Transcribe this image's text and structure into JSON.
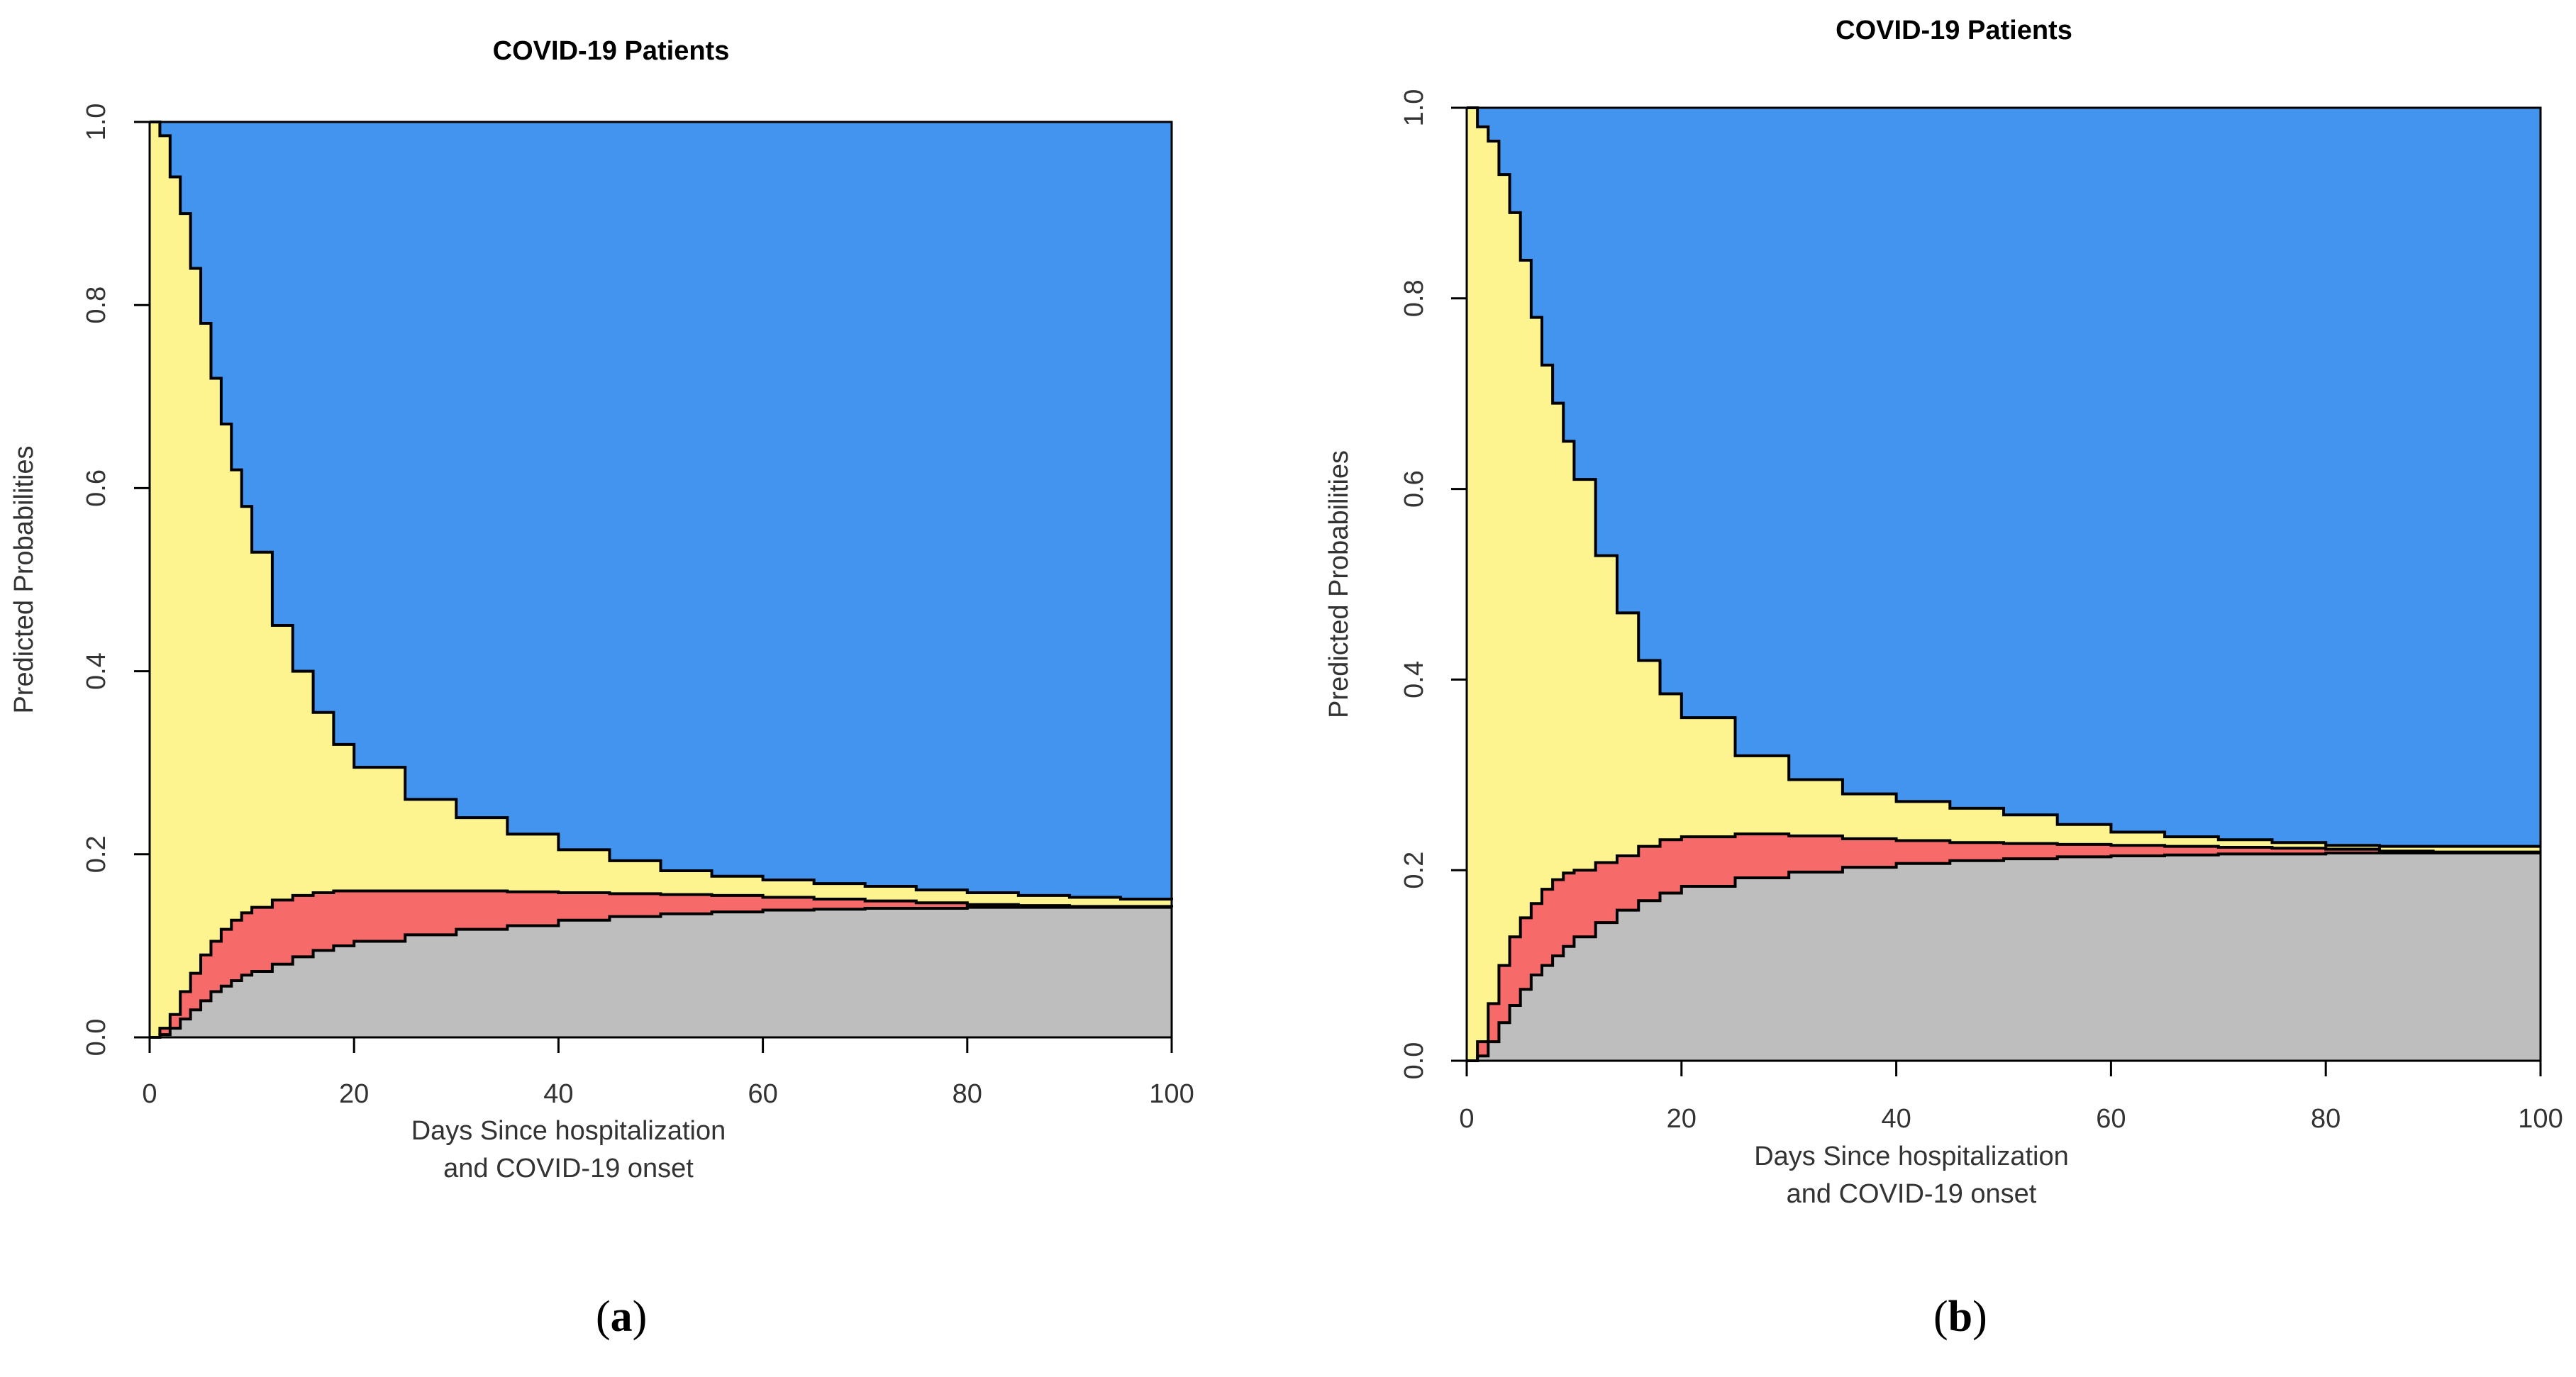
{
  "chart_data": [
    {
      "id": "a",
      "type": "area",
      "stacked": true,
      "step": true,
      "panel_label": "a",
      "title": "COVID-19 Patients",
      "xlabel_lines": [
        "Days Since hospitalization",
        "and COVID-19 onset"
      ],
      "ylabel": "Predicted Probabilities",
      "xlim": [
        0,
        100
      ],
      "ylim": [
        0,
        1
      ],
      "xticks": [
        "0",
        "20",
        "40",
        "60",
        "80",
        "100"
      ],
      "yticks": [
        "0.0",
        "0.2",
        "0.4",
        "0.6",
        "0.8",
        "1.0"
      ],
      "x": [
        0,
        1,
        2,
        3,
        4,
        5,
        6,
        7,
        8,
        9,
        10,
        12,
        14,
        16,
        18,
        20,
        25,
        30,
        35,
        40,
        45,
        50,
        55,
        60,
        65,
        70,
        75,
        80,
        85,
        90,
        95,
        100
      ],
      "series": [
        {
          "name": "gray",
          "color": "#bebebe",
          "boundary": [
            0,
            0.003,
            0.01,
            0.02,
            0.03,
            0.04,
            0.05,
            0.056,
            0.062,
            0.068,
            0.072,
            0.08,
            0.088,
            0.095,
            0.1,
            0.105,
            0.112,
            0.118,
            0.122,
            0.128,
            0.132,
            0.135,
            0.137,
            0.139,
            0.14,
            0.141,
            0.141,
            0.142,
            0.142,
            0.142,
            0.142,
            0.142
          ]
        },
        {
          "name": "red",
          "color": "#f66a6a",
          "boundary": [
            0,
            0.01,
            0.025,
            0.05,
            0.07,
            0.09,
            0.105,
            0.118,
            0.128,
            0.136,
            0.142,
            0.15,
            0.155,
            0.158,
            0.16,
            0.16,
            0.16,
            0.16,
            0.159,
            0.158,
            0.157,
            0.156,
            0.155,
            0.153,
            0.151,
            0.149,
            0.147,
            0.145,
            0.144,
            0.143,
            0.143,
            0.142
          ]
        },
        {
          "name": "yellow",
          "color": "#fdf48f",
          "boundary": [
            1.0,
            0.985,
            0.94,
            0.9,
            0.84,
            0.78,
            0.72,
            0.67,
            0.62,
            0.58,
            0.53,
            0.45,
            0.4,
            0.355,
            0.32,
            0.295,
            0.26,
            0.24,
            0.222,
            0.205,
            0.193,
            0.182,
            0.176,
            0.172,
            0.168,
            0.165,
            0.161,
            0.158,
            0.155,
            0.153,
            0.151,
            0.15
          ]
        },
        {
          "name": "blue",
          "color": "#4294ee",
          "boundary": [
            1,
            1,
            1,
            1,
            1,
            1,
            1,
            1,
            1,
            1,
            1,
            1,
            1,
            1,
            1,
            1,
            1,
            1,
            1,
            1,
            1,
            1,
            1,
            1,
            1,
            1,
            1,
            1,
            1,
            1,
            1,
            1
          ]
        }
      ]
    },
    {
      "id": "b",
      "type": "area",
      "stacked": true,
      "step": true,
      "panel_label": "b",
      "title": "COVID-19 Patients",
      "xlabel_lines": [
        "Days Since hospitalization",
        "and COVID-19 onset"
      ],
      "ylabel": "Predicted Probabilities",
      "xlim": [
        0,
        100
      ],
      "ylim": [
        0,
        1
      ],
      "xticks": [
        "0",
        "20",
        "40",
        "60",
        "80",
        "100"
      ],
      "yticks": [
        "0.0",
        "0.2",
        "0.4",
        "0.6",
        "0.8",
        "1.0"
      ],
      "x": [
        0,
        1,
        2,
        3,
        4,
        5,
        6,
        7,
        8,
        9,
        10,
        12,
        14,
        16,
        18,
        20,
        25,
        30,
        35,
        40,
        45,
        50,
        55,
        60,
        65,
        70,
        75,
        80,
        85,
        90,
        95,
        100
      ],
      "series": [
        {
          "name": "gray",
          "color": "#bebebe",
          "boundary": [
            0,
            0.005,
            0.02,
            0.04,
            0.058,
            0.075,
            0.09,
            0.1,
            0.11,
            0.12,
            0.13,
            0.145,
            0.158,
            0.168,
            0.176,
            0.183,
            0.192,
            0.198,
            0.203,
            0.207,
            0.21,
            0.212,
            0.214,
            0.215,
            0.216,
            0.217,
            0.217,
            0.218,
            0.218,
            0.218,
            0.218,
            0.218
          ]
        },
        {
          "name": "red",
          "color": "#f66a6a",
          "boundary": [
            0,
            0.02,
            0.06,
            0.1,
            0.13,
            0.15,
            0.165,
            0.18,
            0.19,
            0.197,
            0.2,
            0.208,
            0.215,
            0.225,
            0.232,
            0.235,
            0.238,
            0.236,
            0.233,
            0.231,
            0.229,
            0.228,
            0.227,
            0.226,
            0.225,
            0.224,
            0.223,
            0.222,
            0.22,
            0.219,
            0.219,
            0.219
          ]
        },
        {
          "name": "yellow",
          "color": "#fdf48f",
          "boundary": [
            1.0,
            0.98,
            0.965,
            0.93,
            0.89,
            0.84,
            0.78,
            0.73,
            0.69,
            0.65,
            0.61,
            0.53,
            0.47,
            0.42,
            0.385,
            0.36,
            0.32,
            0.295,
            0.28,
            0.272,
            0.265,
            0.258,
            0.248,
            0.24,
            0.235,
            0.232,
            0.229,
            0.226,
            0.225,
            0.225,
            0.225,
            0.225
          ]
        },
        {
          "name": "blue",
          "color": "#4294ee",
          "boundary": [
            1,
            1,
            1,
            1,
            1,
            1,
            1,
            1,
            1,
            1,
            1,
            1,
            1,
            1,
            1,
            1,
            1,
            1,
            1,
            1,
            1,
            1,
            1,
            1,
            1,
            1,
            1,
            1,
            1,
            1,
            1,
            1
          ]
        }
      ]
    }
  ],
  "captions": {
    "a": {
      "open": "(",
      "letter": "a",
      "close": ")"
    },
    "b": {
      "open": "(",
      "letter": "b",
      "close": ")"
    }
  }
}
